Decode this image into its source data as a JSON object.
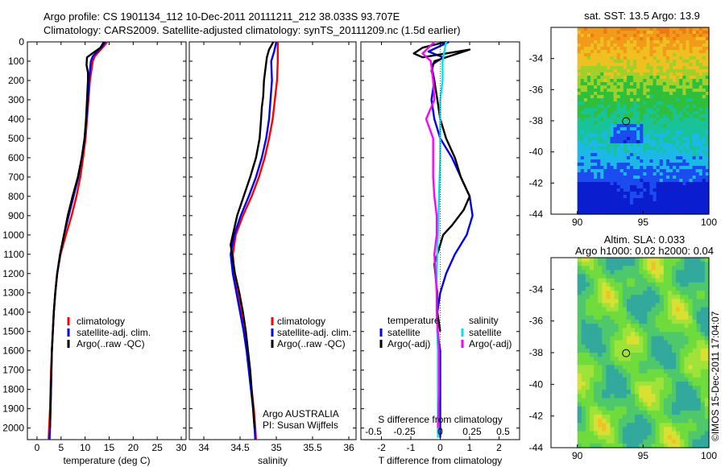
{
  "header": {
    "line1": "Argo profile: CS 1901134_112 10-Dec-2011 20111211_212 38.033S 93.707E",
    "line2": "Climatology: CARS2009. Satellite-adjusted climatology: synTS_20111209.nc (1.5d earlier)"
  },
  "side": {
    "sst_title": "sat. SST: 13.5 Argo: 13.9",
    "sla_title1": "Altim. SLA: 0.033",
    "sla_title2": "Argo h1000: 0.02 h2000: 0.04",
    "stamp": "©IMOS 15-Dec-2011 17:04:07"
  },
  "colors": {
    "climatology": "#ff0000",
    "satellite": "#0000ff",
    "argo": "#000000",
    "sat_salinity": "#00e5e5",
    "argo_salinity": "#ff00ff"
  },
  "chart_data": [
    {
      "type": "line",
      "xlabel": "temperature (deg C)",
      "xlim": [
        -2,
        31
      ],
      "ylim": [
        2060,
        0
      ],
      "xticks": [
        0,
        5,
        10,
        15,
        20,
        25,
        30
      ],
      "yticks": [
        0,
        100,
        200,
        300,
        400,
        500,
        600,
        700,
        800,
        900,
        1000,
        1100,
        1200,
        1300,
        1400,
        1500,
        1600,
        1700,
        1800,
        1900,
        2000
      ],
      "legend": [
        "climatology",
        "satellite-adj. clim.",
        "Argo(..raw -QC)"
      ],
      "series": [
        {
          "name": "climatology",
          "color": "#ff0000",
          "points": [
            [
              14.6,
              0
            ],
            [
              13.8,
              25
            ],
            [
              12.9,
              50
            ],
            [
              12.0,
              75
            ],
            [
              11.6,
              100
            ],
            [
              11.3,
              150
            ],
            [
              11.0,
              200
            ],
            [
              10.7,
              300
            ],
            [
              10.4,
              400
            ],
            [
              10.1,
              500
            ],
            [
              9.6,
              600
            ],
            [
              9.0,
              700
            ],
            [
              8.2,
              800
            ],
            [
              7.2,
              900
            ],
            [
              6.0,
              1000
            ],
            [
              4.9,
              1100
            ],
            [
              4.2,
              1200
            ],
            [
              3.8,
              1300
            ],
            [
              3.5,
              1400
            ],
            [
              3.3,
              1500
            ],
            [
              3.1,
              1600
            ],
            [
              2.9,
              1700
            ],
            [
              2.8,
              1800
            ],
            [
              2.7,
              1900
            ],
            [
              2.5,
              2000
            ],
            [
              2.4,
              2060
            ]
          ]
        },
        {
          "name": "satellite-adj. clim.",
          "color": "#0000ff",
          "points": [
            [
              14.2,
              0
            ],
            [
              13.5,
              25
            ],
            [
              12.5,
              50
            ],
            [
              11.6,
              75
            ],
            [
              11.2,
              100
            ],
            [
              11.0,
              150
            ],
            [
              10.8,
              200
            ],
            [
              10.6,
              300
            ],
            [
              10.3,
              400
            ],
            [
              9.9,
              500
            ],
            [
              9.3,
              600
            ],
            [
              8.6,
              700
            ],
            [
              7.6,
              800
            ],
            [
              6.6,
              900
            ],
            [
              5.6,
              1000
            ],
            [
              4.8,
              1100
            ],
            [
              4.2,
              1200
            ],
            [
              3.8,
              1300
            ],
            [
              3.5,
              1400
            ],
            [
              3.3,
              1500
            ],
            [
              3.1,
              1600
            ],
            [
              3.0,
              1700
            ],
            [
              2.9,
              1800
            ],
            [
              2.8,
              1900
            ],
            [
              2.7,
              2000
            ],
            [
              2.6,
              2060
            ]
          ]
        },
        {
          "name": "Argo(..raw -QC)",
          "color": "#000000",
          "points": [
            [
              13.9,
              0
            ],
            [
              13.2,
              30
            ],
            [
              11.5,
              60
            ],
            [
              10.4,
              80
            ],
            [
              10.3,
              120
            ],
            [
              10.6,
              160
            ],
            [
              10.6,
              200
            ],
            [
              10.4,
              300
            ],
            [
              10.2,
              400
            ],
            [
              9.9,
              500
            ],
            [
              9.3,
              600
            ],
            [
              8.5,
              700
            ],
            [
              7.4,
              800
            ],
            [
              6.4,
              900
            ],
            [
              5.6,
              1000
            ],
            [
              4.8,
              1100
            ],
            [
              4.2,
              1200
            ],
            [
              3.8,
              1300
            ],
            [
              3.5,
              1400
            ],
            [
              3.3,
              1500
            ],
            [
              3.1,
              1600
            ],
            [
              3.0,
              1700
            ],
            [
              2.9,
              1800
            ],
            [
              2.8,
              1900
            ],
            [
              2.7,
              2000
            ]
          ]
        }
      ]
    },
    {
      "type": "line",
      "xlabel": "salinity",
      "xlim": [
        33.8,
        36.1
      ],
      "ylim": [
        2060,
        0
      ],
      "xticks": [
        34,
        34.5,
        35,
        35.5,
        36
      ],
      "legend": [
        "climatology",
        "satellite-adj. clim.",
        "Argo(..raw -QC)"
      ],
      "annotation": [
        "Argo AUSTRALIA",
        "PI: Susan Wijffels"
      ],
      "series": [
        {
          "name": "climatology",
          "color": "#ff0000",
          "points": [
            [
              35.02,
              0
            ],
            [
              35.02,
              100
            ],
            [
              35.01,
              200
            ],
            [
              34.98,
              300
            ],
            [
              34.95,
              400
            ],
            [
              34.9,
              500
            ],
            [
              34.84,
              600
            ],
            [
              34.76,
              700
            ],
            [
              34.66,
              800
            ],
            [
              34.54,
              900
            ],
            [
              34.44,
              1000
            ],
            [
              34.4,
              1100
            ],
            [
              34.42,
              1200
            ],
            [
              34.47,
              1300
            ],
            [
              34.52,
              1400
            ],
            [
              34.56,
              1500
            ],
            [
              34.6,
              1600
            ],
            [
              34.63,
              1700
            ],
            [
              34.66,
              1800
            ],
            [
              34.69,
              1900
            ],
            [
              34.71,
              2000
            ],
            [
              34.72,
              2060
            ]
          ]
        },
        {
          "name": "satellite-adj. clim.",
          "color": "#0000ff",
          "points": [
            [
              35.0,
              0
            ],
            [
              34.97,
              50
            ],
            [
              34.93,
              100
            ],
            [
              34.94,
              200
            ],
            [
              34.92,
              300
            ],
            [
              34.9,
              400
            ],
            [
              34.86,
              500
            ],
            [
              34.8,
              600
            ],
            [
              34.72,
              700
            ],
            [
              34.62,
              800
            ],
            [
              34.51,
              900
            ],
            [
              34.42,
              1000
            ],
            [
              34.37,
              1100
            ],
            [
              34.4,
              1200
            ],
            [
              34.45,
              1300
            ],
            [
              34.5,
              1400
            ],
            [
              34.55,
              1500
            ],
            [
              34.59,
              1600
            ],
            [
              34.62,
              1700
            ],
            [
              34.65,
              1800
            ],
            [
              34.68,
              1900
            ],
            [
              34.7,
              2000
            ],
            [
              34.71,
              2060
            ]
          ]
        },
        {
          "name": "Argo(..raw -QC)",
          "color": "#000000",
          "points": [
            [
              34.96,
              0
            ],
            [
              34.9,
              40
            ],
            [
              34.87,
              80
            ],
            [
              34.85,
              140
            ],
            [
              34.83,
              200
            ],
            [
              34.82,
              280
            ],
            [
              34.8,
              340
            ],
            [
              34.79,
              400
            ],
            [
              34.77,
              500
            ],
            [
              34.72,
              600
            ],
            [
              34.64,
              700
            ],
            [
              34.55,
              800
            ],
            [
              34.46,
              900
            ],
            [
              34.4,
              1000
            ],
            [
              34.37,
              1050
            ],
            [
              34.39,
              1100
            ],
            [
              34.43,
              1200
            ],
            [
              34.49,
              1300
            ],
            [
              34.54,
              1400
            ],
            [
              34.58,
              1500
            ],
            [
              34.61,
              1600
            ],
            [
              34.64,
              1700
            ],
            [
              34.66,
              1800
            ],
            [
              34.68,
              1900
            ],
            [
              34.7,
              2000
            ]
          ]
        }
      ]
    },
    {
      "type": "line",
      "xlabel": "T difference from climatology",
      "xlabel_top": "S difference from climatology",
      "xlim": [
        -2.7,
        2.7
      ],
      "ylim": [
        2060,
        0
      ],
      "xticks": [
        -2,
        -1,
        0,
        1,
        2
      ],
      "xticks_top": [
        "-0.5",
        "-0.25",
        "0",
        "0.25",
        "0.5"
      ],
      "legend_titles": [
        "temperature",
        "salinity"
      ],
      "legend": [
        "satellite",
        "Argo(-adj)",
        "satellite",
        "Argo(-adj)"
      ],
      "series": [
        {
          "name": "satellite",
          "group": "temperature",
          "color": "#0000ff",
          "points": [
            [
              0.3,
              0
            ],
            [
              -0.4,
              50
            ],
            [
              0.1,
              80
            ],
            [
              -0.3,
              120
            ],
            [
              -0.2,
              200
            ],
            [
              -0.3,
              300
            ],
            [
              -0.2,
              400
            ],
            [
              0.0,
              500
            ],
            [
              0.4,
              600
            ],
            [
              0.7,
              700
            ],
            [
              1.0,
              800
            ],
            [
              1.1,
              900
            ],
            [
              0.9,
              1000
            ],
            [
              0.5,
              1100
            ],
            [
              0.2,
              1200
            ],
            [
              0.0,
              1300
            ],
            [
              -0.1,
              1400
            ],
            [
              -0.1,
              1500
            ],
            [
              0.0,
              1600
            ],
            [
              0.0,
              1700
            ],
            [
              0.0,
              1800
            ],
            [
              0.0,
              1900
            ],
            [
              0.0,
              2000
            ],
            [
              0.0,
              2050
            ]
          ]
        },
        {
          "name": "Argo(-adj)",
          "group": "temperature",
          "color": "#000000",
          "points": [
            [
              0.2,
              0
            ],
            [
              -0.6,
              30
            ],
            [
              -0.9,
              60
            ],
            [
              -0.6,
              80
            ],
            [
              1.0,
              40
            ],
            [
              -0.2,
              100
            ],
            [
              -0.3,
              150
            ],
            [
              -0.2,
              200
            ],
            [
              -0.1,
              300
            ],
            [
              0.0,
              400
            ],
            [
              0.2,
              500
            ],
            [
              0.5,
              600
            ],
            [
              0.7,
              700
            ],
            [
              1.0,
              800
            ],
            [
              0.8,
              870
            ],
            [
              0.4,
              950
            ],
            [
              0.1,
              1000
            ],
            [
              -0.1,
              1100
            ],
            [
              -0.2,
              1150
            ],
            [
              -0.1,
              1300
            ],
            [
              -0.1,
              1400
            ],
            [
              0.0,
              1500
            ]
          ]
        },
        {
          "name": "satellite",
          "group": "salinity",
          "color": "#00e5e5",
          "points": [
            [
              0.05,
              0
            ],
            [
              0.02,
              100
            ],
            [
              0.02,
              200
            ],
            [
              0.0,
              300
            ],
            [
              0.0,
              400
            ],
            [
              0.0,
              600
            ],
            [
              -0.01,
              800
            ],
            [
              -0.02,
              1000
            ],
            [
              -0.03,
              1200
            ],
            [
              -0.03,
              1400
            ],
            [
              -0.02,
              1600
            ],
            [
              -0.02,
              1800
            ],
            [
              -0.02,
              2000
            ],
            [
              -0.02,
              2050
            ]
          ]
        },
        {
          "name": "Argo(-adj)",
          "group": "salinity",
          "color": "#ff00ff",
          "points": [
            [
              -0.05,
              0
            ],
            [
              -0.15,
              60
            ],
            [
              -0.08,
              100
            ],
            [
              -0.06,
              200
            ],
            [
              -0.05,
              300
            ],
            [
              -0.12,
              400
            ],
            [
              -0.06,
              500
            ],
            [
              -0.06,
              600
            ],
            [
              -0.06,
              700
            ],
            [
              -0.05,
              800
            ],
            [
              -0.03,
              900
            ],
            [
              -0.03,
              1000
            ],
            [
              -0.05,
              1100
            ],
            [
              -0.04,
              1200
            ],
            [
              -0.03,
              1300
            ],
            [
              -0.03,
              1400
            ],
            [
              -0.02,
              1500
            ],
            [
              -0.01,
              1600
            ],
            [
              -0.01,
              1800
            ],
            [
              -0.02,
              2000
            ]
          ]
        }
      ]
    },
    {
      "type": "heatmap",
      "title": "sat. SST: 13.5 Argo: 13.9",
      "xlim": [
        88,
        100
      ],
      "ylim": [
        -44,
        -32
      ],
      "xticks": [
        90,
        95,
        100
      ],
      "yticks": [
        -34,
        -36,
        -38,
        -40,
        -42,
        -44
      ],
      "data_extent": [
        90,
        100
      ],
      "marker": [
        93.707,
        -38.033
      ]
    },
    {
      "type": "heatmap",
      "title": "Altim. SLA: 0.033",
      "xlim": [
        88,
        100
      ],
      "ylim": [
        -44,
        -32
      ],
      "xticks": [
        90,
        95,
        100
      ],
      "yticks": [
        -34,
        -36,
        -38,
        -40,
        -42,
        -44
      ],
      "data_extent": [
        90,
        100
      ],
      "marker": [
        93.707,
        -38.033
      ]
    }
  ]
}
